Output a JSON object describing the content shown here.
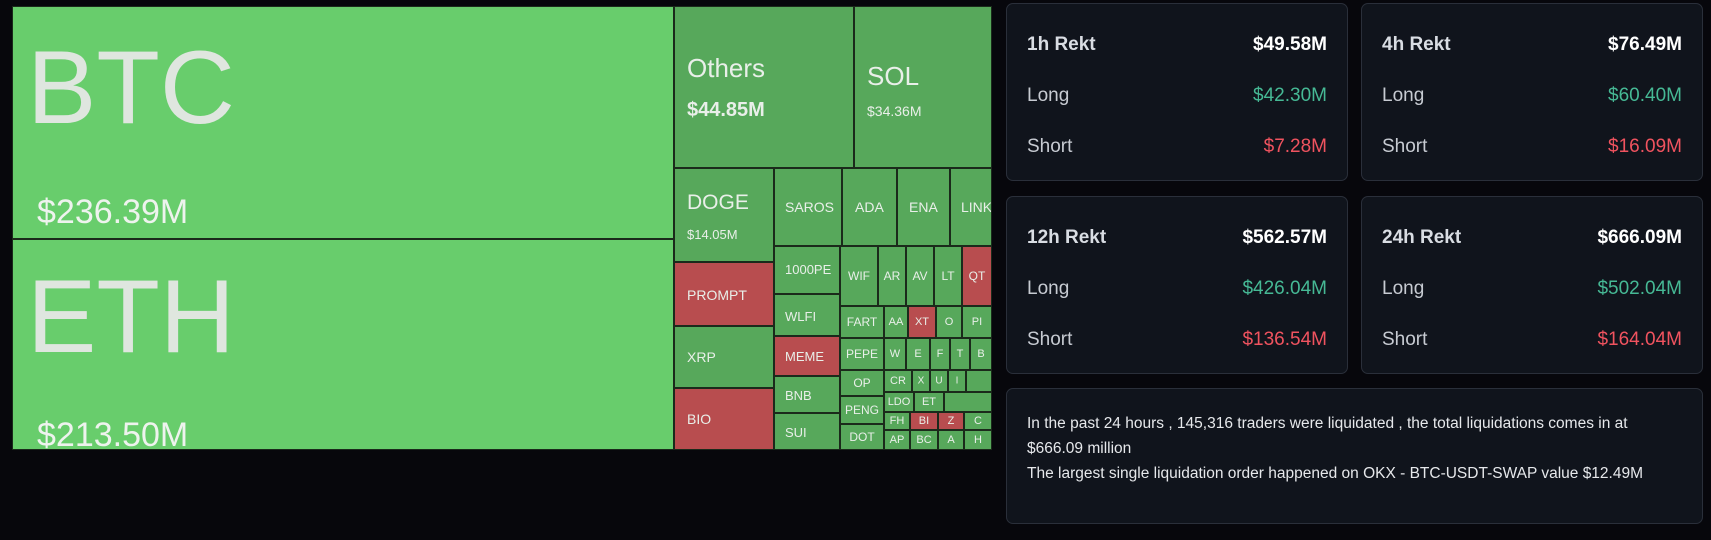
{
  "colors": {
    "green_light": "#68cd6c",
    "green_mid": "#57a85b",
    "red": "#b84d4f",
    "long": "#46b995",
    "short": "#f0535f"
  },
  "treemap": {
    "btc": {
      "symbol": "BTC",
      "value": "$236.39M"
    },
    "eth": {
      "symbol": "ETH",
      "value": "$213.50M"
    },
    "others": {
      "symbol": "Others",
      "value": "$44.85M"
    },
    "sol": {
      "symbol": "SOL",
      "value": "$34.36M"
    },
    "doge": {
      "symbol": "DOGE",
      "value": "$14.05M"
    },
    "prompt": {
      "symbol": "PROMPT"
    },
    "xrp": {
      "symbol": "XRP"
    },
    "bio": {
      "symbol": "BIO"
    },
    "saros": {
      "symbol": "SAROS"
    },
    "ada": {
      "symbol": "ADA"
    },
    "ena": {
      "symbol": "ENA"
    },
    "link": {
      "symbol": "LINK"
    },
    "pepe1000": {
      "symbol": "1000PE"
    },
    "wlfi": {
      "symbol": "WLFI"
    },
    "meme": {
      "symbol": "MEME"
    },
    "bnb": {
      "symbol": "BNB"
    },
    "sui": {
      "symbol": "SUI"
    },
    "wif": {
      "symbol": "WIF"
    },
    "ar": {
      "symbol": "AR"
    },
    "av": {
      "symbol": "AV"
    },
    "lt": {
      "symbol": "LT"
    },
    "qt": {
      "symbol": "QT"
    },
    "fart": {
      "symbol": "FART"
    },
    "aa": {
      "symbol": "AA"
    },
    "xt": {
      "symbol": "XT"
    },
    "o": {
      "symbol": "O"
    },
    "pi": {
      "symbol": "PI"
    },
    "pepe": {
      "symbol": "PEPE"
    },
    "w": {
      "symbol": "W"
    },
    "e": {
      "symbol": "E"
    },
    "f": {
      "symbol": "F"
    },
    "t": {
      "symbol": "T"
    },
    "b": {
      "symbol": "B"
    },
    "op": {
      "symbol": "OP"
    },
    "cr": {
      "symbol": "CR"
    },
    "ldo": {
      "symbol": "LDO"
    },
    "peng": {
      "symbol": "PENG"
    },
    "fh": {
      "symbol": "FH"
    },
    "et": {
      "symbol": "ET"
    },
    "z": {
      "symbol": "Z"
    },
    "c": {
      "symbol": "C"
    },
    "bi": {
      "symbol": "BI"
    },
    "dot": {
      "symbol": "DOT"
    },
    "ap": {
      "symbol": "AP"
    },
    "bc": {
      "symbol": "BC"
    },
    "a": {
      "symbol": "A"
    },
    "h": {
      "symbol": "H"
    },
    "x": {
      "symbol": "X"
    },
    "u": {
      "symbol": "U"
    },
    "i": {
      "symbol": "I"
    }
  },
  "stats": {
    "h1": {
      "title": "1h Rekt",
      "total": "$49.58M",
      "long_label": "Long",
      "long": "$42.30M",
      "short_label": "Short",
      "short": "$7.28M"
    },
    "h4": {
      "title": "4h Rekt",
      "total": "$76.49M",
      "long_label": "Long",
      "long": "$60.40M",
      "short_label": "Short",
      "short": "$16.09M"
    },
    "h12": {
      "title": "12h Rekt",
      "total": "$562.57M",
      "long_label": "Long",
      "long": "$426.04M",
      "short_label": "Short",
      "short": "$136.54M"
    },
    "h24": {
      "title": "24h Rekt",
      "total": "$666.09M",
      "long_label": "Long",
      "long": "$502.04M",
      "short_label": "Short",
      "short": "$164.04M"
    }
  },
  "summary": {
    "line1": "In the past 24 hours , 145,316 traders were liquidated , the total liquidations comes in at $666.09 million",
    "line2": "The largest single liquidation order happened on OKX - BTC-USDT-SWAP value $12.49M"
  }
}
